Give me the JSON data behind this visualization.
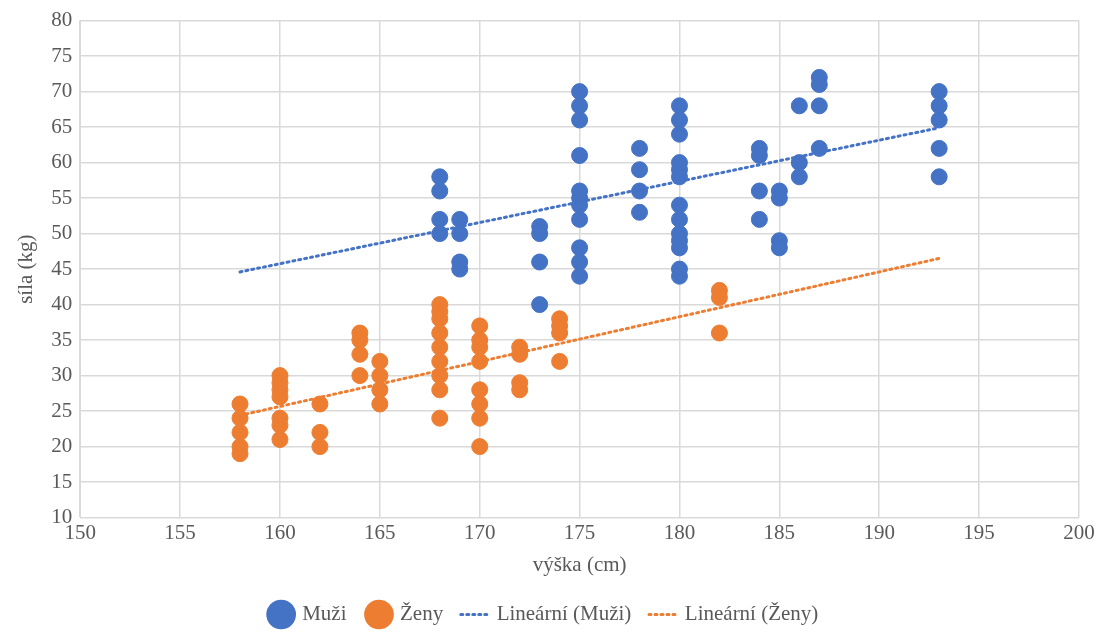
{
  "chart_data": {
    "type": "scatter",
    "xlabel": "výška (cm)",
    "ylabel": "síla (kg)",
    "xlim": [
      150,
      200
    ],
    "xticks": [
      150,
      155,
      160,
      165,
      170,
      175,
      180,
      185,
      190,
      195,
      200
    ],
    "ylim": [
      10,
      80
    ],
    "yticks": [
      10,
      15,
      20,
      25,
      30,
      35,
      40,
      45,
      50,
      55,
      60,
      65,
      70,
      75,
      80
    ],
    "grid": true,
    "legend": "bottom",
    "marker": "circle",
    "series": [
      {
        "name": "Muži",
        "color": "#4472c4",
        "x": [
          168,
          168,
          168,
          168,
          169,
          169,
          169,
          169,
          173,
          173,
          173,
          173,
          175,
          175,
          175,
          175,
          175,
          175,
          175,
          175,
          175,
          175,
          175,
          178,
          178,
          178,
          178,
          180,
          180,
          180,
          180,
          180,
          180,
          180,
          180,
          180,
          180,
          180,
          180,
          180,
          184,
          184,
          184,
          184,
          185,
          185,
          185,
          185,
          186,
          186,
          186,
          187,
          187,
          187,
          187,
          193,
          193,
          193,
          193,
          193
        ],
        "values": [
          58,
          56,
          52,
          50,
          52,
          50,
          46,
          45,
          51,
          50,
          46,
          40,
          70,
          68,
          66,
          61,
          56,
          55,
          54,
          52,
          48,
          46,
          44,
          62,
          59,
          56,
          53,
          68,
          66,
          64,
          60,
          59,
          58,
          54,
          52,
          50,
          49,
          48,
          45,
          44,
          62,
          61,
          56,
          52,
          56,
          55,
          49,
          48,
          68,
          60,
          58,
          72,
          71,
          68,
          62,
          70,
          68,
          66,
          62,
          58
        ]
      },
      {
        "name": "Ženy",
        "color": "#ed7d31",
        "x": [
          158,
          158,
          158,
          158,
          158,
          160,
          160,
          160,
          160,
          160,
          160,
          160,
          162,
          162,
          162,
          164,
          164,
          164,
          164,
          165,
          165,
          165,
          165,
          168,
          168,
          168,
          168,
          168,
          168,
          168,
          168,
          168,
          170,
          170,
          170,
          170,
          170,
          170,
          170,
          170,
          172,
          172,
          172,
          172,
          174,
          174,
          174,
          174,
          182,
          182,
          182
        ],
        "values": [
          26,
          24,
          22,
          20,
          19,
          30,
          29,
          28,
          27,
          24,
          23,
          21,
          26,
          22,
          20,
          36,
          35,
          33,
          30,
          32,
          30,
          28,
          26,
          40,
          39,
          38,
          36,
          34,
          32,
          30,
          28,
          24,
          37,
          35,
          34,
          32,
          28,
          26,
          24,
          20,
          34,
          33,
          29,
          28,
          38,
          37,
          36,
          32,
          42,
          41,
          36
        ]
      },
      {
        "name": "Lineární (Muži)",
        "type": "line",
        "line_style": "dotted",
        "marker": "none",
        "color": "#4472c4",
        "x": [
          158,
          193
        ],
        "values": [
          44.6,
          64.9
        ]
      },
      {
        "name": "Lineární (Ženy)",
        "type": "line",
        "line_style": "dotted",
        "marker": "none",
        "color": "#ed7d31",
        "x": [
          158,
          193
        ],
        "values": [
          24.4,
          46.5
        ]
      }
    ]
  }
}
